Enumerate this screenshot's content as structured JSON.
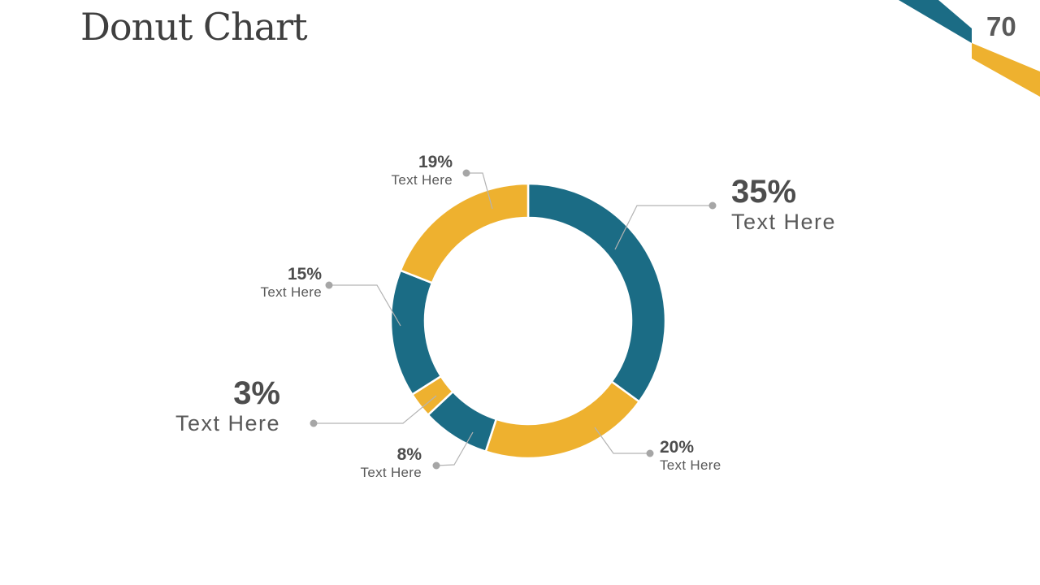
{
  "slide": {
    "title": "Donut Chart",
    "page_number": "70"
  },
  "colors": {
    "teal": "#1B6C85",
    "yellow": "#EEB12F",
    "label_number": "#4D4D4D",
    "label_text": "#595959",
    "leader_line": "#B3B3B3",
    "leader_dot": "#A6A6A6",
    "title_text": "#3F3F3F"
  },
  "chart_data": {
    "type": "pie",
    "variant": "donut",
    "title": "Donut Chart",
    "start_angle_deg": 0,
    "direction": "clockwise",
    "legend_position": "none",
    "categories": [
      "Text Here",
      "Text Here",
      "Text Here",
      "Text Here",
      "Text Here",
      "Text Here"
    ],
    "values": [
      35,
      20,
      8,
      3,
      15,
      19
    ],
    "slices": [
      {
        "label": "35%",
        "value": 35,
        "sublabel": "Text Here",
        "color": "#1B6C85",
        "emphasized": true
      },
      {
        "label": "20%",
        "value": 20,
        "sublabel": "Text Here",
        "color": "#EEB12F",
        "emphasized": false
      },
      {
        "label": "8%",
        "value": 8,
        "sublabel": "Text Here",
        "color": "#1B6C85",
        "emphasized": false
      },
      {
        "label": "3%",
        "value": 3,
        "sublabel": "Text Here",
        "color": "#EEB12F",
        "emphasized": true
      },
      {
        "label": "15%",
        "value": 15,
        "sublabel": "Text Here",
        "color": "#1B6C85",
        "emphasized": false
      },
      {
        "label": "19%",
        "value": 19,
        "sublabel": "Text Here",
        "color": "#EEB12F",
        "emphasized": false
      }
    ]
  }
}
